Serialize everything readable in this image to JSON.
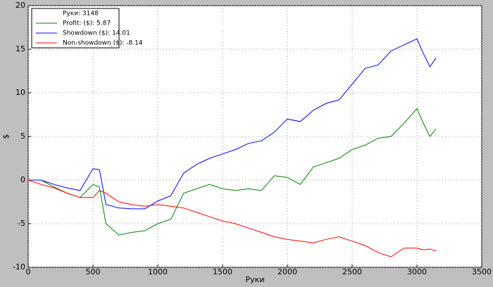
{
  "chart_data": {
    "type": "line",
    "legend_title": "Руки: 3148",
    "xlabel": "Руки",
    "ylabel": "$",
    "x": [
      0,
      100,
      200,
      300,
      400,
      500,
      550,
      600,
      700,
      800,
      900,
      1000,
      1100,
      1200,
      1300,
      1400,
      1500,
      1600,
      1700,
      1800,
      1900,
      2000,
      2100,
      2200,
      2300,
      2400,
      2500,
      2600,
      2700,
      2800,
      2900,
      3000,
      3050,
      3100,
      3148
    ],
    "series": [
      {
        "name": "Profit: ($): 5.87",
        "color": "#008000",
        "values": [
          0,
          0,
          -0.8,
          -1.5,
          -2,
          -0.5,
          -0.8,
          -5,
          -6.3,
          -6,
          -5.8,
          -5,
          -4.5,
          -1.5,
          -1,
          -0.5,
          -1,
          -1.2,
          -1,
          -1.2,
          0.5,
          0.3,
          -0.5,
          1.5,
          2,
          2.5,
          3.5,
          4,
          4.8,
          5,
          6.5,
          8.2,
          6.5,
          5,
          5.87
        ]
      },
      {
        "name": "Showdown ($): 14.01",
        "color": "#0000ff",
        "values": [
          0,
          0,
          -0.5,
          -0.9,
          -1.2,
          1.3,
          1.2,
          -2.8,
          -3.2,
          -3.3,
          -3.3,
          -2.4,
          -1.8,
          0.8,
          1.8,
          2.5,
          3,
          3.5,
          4.2,
          4.5,
          5.5,
          7,
          6.7,
          8,
          8.8,
          9.2,
          11,
          12.8,
          13.2,
          14.8,
          15.5,
          16.2,
          14.5,
          13,
          14.01
        ]
      },
      {
        "name": "Non-showdown ($): -8.14",
        "color": "#ff0000",
        "values": [
          0,
          -0.5,
          -0.9,
          -1.5,
          -2,
          -2,
          -1.2,
          -1.5,
          -2.5,
          -2.8,
          -3,
          -2.8,
          -3,
          -3.2,
          -3.7,
          -4.2,
          -4.7,
          -5,
          -5.5,
          -6,
          -6.5,
          -6.8,
          -7,
          -7.2,
          -6.8,
          -6.5,
          -7,
          -7.5,
          -8.3,
          -8.8,
          -7.8,
          -7.8,
          -8,
          -7.9,
          -8.14
        ]
      }
    ],
    "xlim": [
      0,
      3500
    ],
    "xticks": [
      0,
      500,
      1000,
      1500,
      2000,
      2500,
      3000,
      3500
    ],
    "ylim": [
      -10,
      20
    ],
    "yticks": [
      -10,
      -5,
      0,
      5,
      10,
      15,
      20
    ],
    "grid": true,
    "legend": "upper left"
  }
}
